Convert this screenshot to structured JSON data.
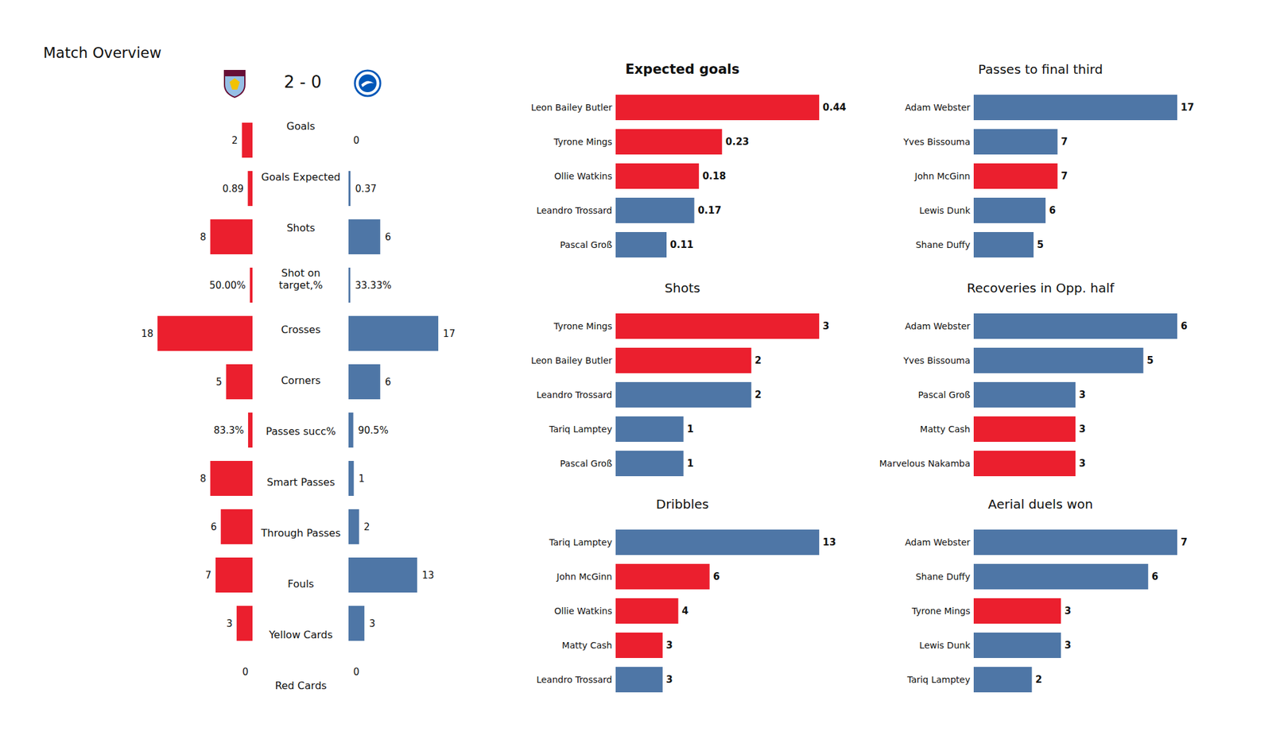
{
  "chart_data": [
    {
      "type": "bar",
      "title": "Match Overview",
      "subtitle": "2 - 0",
      "orientation": "horizontal",
      "data_labels": true,
      "tick_labels": false,
      "categories": [
        "Goals",
        "Goals Expected",
        "Shots",
        "Shot on\ntarget,%",
        "Crosses",
        "Corners",
        "Passes succ%",
        "Smart Passes",
        "Through Passes",
        "Fouls",
        "Yellow Cards",
        "Red Cards"
      ],
      "xlim": [
        0,
        20
      ],
      "series": [
        {
          "color": "#eb1f2e",
          "values": [
            2,
            0.89,
            8,
            0.5,
            18,
            5,
            0.833,
            8,
            6,
            7,
            3,
            0
          ],
          "value_labels": [
            "2",
            "0.89",
            "8",
            "50.00%",
            "18",
            "5",
            "83.3%",
            "8",
            "6",
            "7",
            "3",
            "0"
          ]
        },
        {
          "color": "#4e76a6",
          "values": [
            0,
            0.37,
            6,
            0.3333,
            17,
            6,
            0.905,
            1,
            2,
            13,
            3,
            0
          ],
          "value_labels": [
            "0",
            "0.37",
            "6",
            "33.33%",
            "17",
            "6",
            "90.5%",
            "1",
            "2",
            "13",
            "3",
            "0"
          ]
        }
      ]
    },
    {
      "type": "bar",
      "title": "Expected goals",
      "orientation": "horizontal",
      "data_labels": true,
      "tick_labels": "y",
      "categories": [
        "Leon Bailey Butler",
        "Tyrone Mings",
        "Ollie Watkins",
        "Leandro Trossard",
        "Pascal Groß"
      ],
      "values": [
        0.44,
        0.23,
        0.18,
        0.17,
        0.11
      ],
      "colors": [
        "#eb1f2e",
        "#eb1f2e",
        "#eb1f2e",
        "#4e76a6",
        "#4e76a6"
      ],
      "xlim": [
        0,
        0.44
      ]
    },
    {
      "type": "bar",
      "title": "Passes to final third",
      "orientation": "horizontal",
      "data_labels": true,
      "tick_labels": "y",
      "categories": [
        "Adam Webster",
        "Yves Bissouma",
        "John McGinn",
        "Lewis Dunk",
        "Shane Duffy"
      ],
      "values": [
        17,
        7,
        7,
        6,
        5
      ],
      "colors": [
        "#4e76a6",
        "#4e76a6",
        "#eb1f2e",
        "#4e76a6",
        "#4e76a6"
      ],
      "xlim": [
        0,
        17
      ]
    },
    {
      "type": "bar",
      "title": "Shots",
      "orientation": "horizontal",
      "data_labels": true,
      "tick_labels": "y",
      "categories": [
        "Tyrone Mings",
        "Leon Bailey Butler",
        "Leandro Trossard",
        "Tariq Lamptey",
        "Pascal Groß"
      ],
      "values": [
        3,
        2,
        2,
        1,
        1
      ],
      "colors": [
        "#eb1f2e",
        "#eb1f2e",
        "#4e76a6",
        "#4e76a6",
        "#4e76a6"
      ],
      "xlim": [
        0,
        3
      ]
    },
    {
      "type": "bar",
      "title": "Recoveries in Opp. half",
      "orientation": "horizontal",
      "data_labels": true,
      "tick_labels": "y",
      "categories": [
        "Adam Webster",
        "Yves Bissouma",
        "Pascal Groß",
        "Matty Cash",
        "Marvelous Nakamba"
      ],
      "values": [
        6,
        5,
        3,
        3,
        3
      ],
      "colors": [
        "#4e76a6",
        "#4e76a6",
        "#4e76a6",
        "#eb1f2e",
        "#eb1f2e"
      ],
      "xlim": [
        0,
        6
      ]
    },
    {
      "type": "bar",
      "title": "Dribbles",
      "orientation": "horizontal",
      "data_labels": true,
      "tick_labels": "y",
      "categories": [
        "Tariq Lamptey",
        "John McGinn",
        "Ollie Watkins",
        "Matty Cash",
        "Leandro Trossard"
      ],
      "values": [
        13,
        6,
        4,
        3,
        3
      ],
      "colors": [
        "#4e76a6",
        "#eb1f2e",
        "#eb1f2e",
        "#eb1f2e",
        "#4e76a6"
      ],
      "xlim": [
        0,
        13
      ]
    },
    {
      "type": "bar",
      "title": "Aerial duels won",
      "orientation": "horizontal",
      "data_labels": true,
      "tick_labels": "y",
      "categories": [
        "Adam Webster",
        "Shane Duffy",
        "Tyrone Mings",
        "Lewis Dunk",
        "Tariq Lamptey"
      ],
      "values": [
        7,
        6,
        3,
        3,
        2
      ],
      "colors": [
        "#4e76a6",
        "#4e76a6",
        "#eb1f2e",
        "#4e76a6",
        "#4e76a6"
      ],
      "xlim": [
        0,
        7
      ]
    }
  ]
}
